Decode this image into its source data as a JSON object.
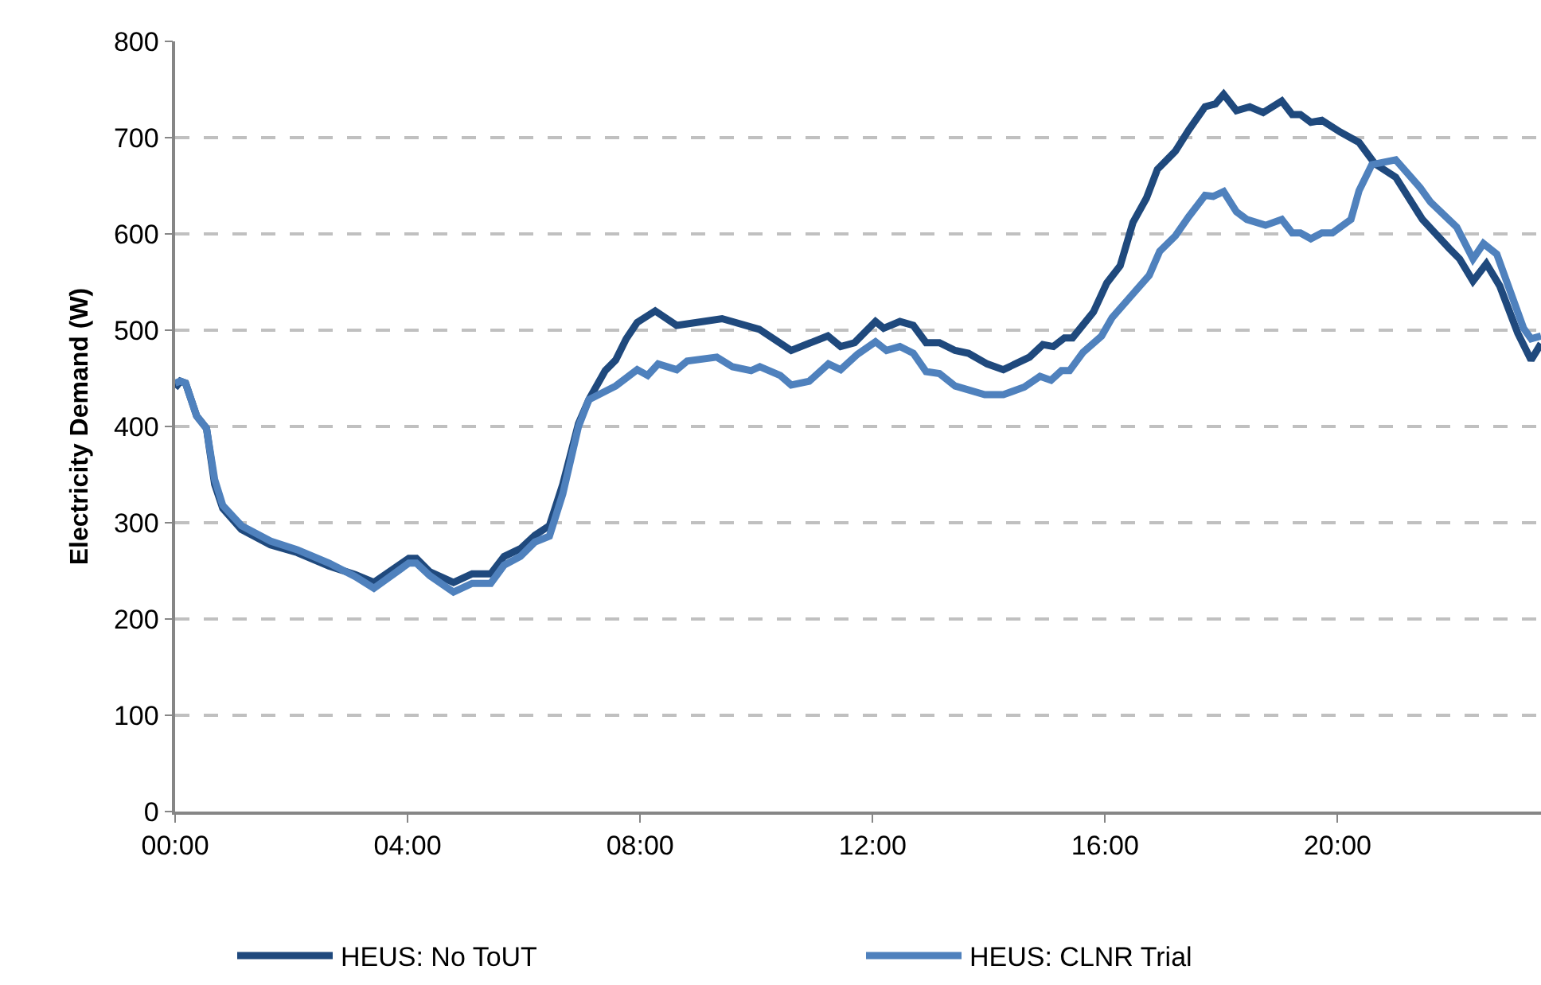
{
  "chart_data": {
    "type": "line",
    "ylabel": "Electricity Demand (W)",
    "xlim": [
      0,
      23.5
    ],
    "ylim": [
      0,
      800
    ],
    "xticks": [
      {
        "value": 0,
        "label": "00:00"
      },
      {
        "value": 4,
        "label": "04:00"
      },
      {
        "value": 8,
        "label": "08:00"
      },
      {
        "value": 12,
        "label": "12:00"
      },
      {
        "value": 16,
        "label": "16:00"
      },
      {
        "value": 20,
        "label": "20:00"
      }
    ],
    "yticks": [
      0,
      100,
      200,
      300,
      400,
      500,
      600,
      700,
      800
    ],
    "grid": "y",
    "legend": "bottom",
    "marker": "none",
    "line_style": "solid",
    "series": [
      {
        "name": "HEUS: No ToUT",
        "color": "#1f497d",
        "x": [
          0,
          0.09,
          0.18,
          0.37,
          0.54,
          0.68,
          0.82,
          1.14,
          1.64,
          2.1,
          2.65,
          3.1,
          3.42,
          4.02,
          4.15,
          4.38,
          4.79,
          5.11,
          5.43,
          5.66,
          5.94,
          6.19,
          6.44,
          6.67,
          6.94,
          7.12,
          7.4,
          7.58,
          7.76,
          7.95,
          8.26,
          8.63,
          9.41,
          10.05,
          10.6,
          11.23,
          11.45,
          11.69,
          12.05,
          12.19,
          12.47,
          12.7,
          12.92,
          13.15,
          13.42,
          13.65,
          13.97,
          14.25,
          14.7,
          14.93,
          15.11,
          15.3,
          15.44,
          15.8,
          16.03,
          16.26,
          16.48,
          16.71,
          16.9,
          17.21,
          17.44,
          17.72,
          17.9,
          18.04,
          18.26,
          18.49,
          18.72,
          19.04,
          19.22,
          19.36,
          19.54,
          19.73,
          20.04,
          20.37,
          20.64,
          21.0,
          21.46,
          21.92,
          22.1,
          22.33,
          22.56,
          22.79,
          23.1,
          23.33,
          23.5
        ],
        "values": [
          440,
          447,
          445,
          411,
          398,
          340,
          315,
          293,
          277,
          269,
          255,
          246,
          238,
          263,
          263,
          249,
          238,
          247,
          247,
          265,
          273,
          287,
          297,
          340,
          403,
          428,
          458,
          469,
          491,
          508,
          520,
          505,
          512,
          501,
          479,
          494,
          483,
          487,
          509,
          502,
          509,
          505,
          487,
          487,
          479,
          476,
          465,
          459,
          472,
          485,
          483,
          492,
          492,
          519,
          549,
          567,
          612,
          637,
          667,
          686,
          708,
          732,
          735,
          745,
          728,
          732,
          726,
          738,
          724,
          724,
          716,
          718,
          706,
          695,
          673,
          659,
          615,
          585,
          574,
          551,
          569,
          546,
          497,
          469,
          486
        ]
      },
      {
        "name": "HEUS: CLNR Trial",
        "color": "#4f81bd",
        "x": [
          0,
          0.09,
          0.18,
          0.37,
          0.54,
          0.68,
          0.82,
          1.14,
          1.64,
          2.1,
          2.65,
          3.1,
          3.42,
          4.02,
          4.15,
          4.38,
          4.79,
          5.11,
          5.43,
          5.66,
          5.94,
          6.19,
          6.44,
          6.67,
          6.94,
          7.12,
          7.58,
          7.95,
          8.13,
          8.31,
          8.63,
          8.81,
          9.32,
          9.59,
          9.91,
          10.06,
          10.41,
          10.6,
          10.91,
          11.24,
          11.45,
          11.74,
          12.05,
          12.24,
          12.47,
          12.7,
          12.92,
          13.15,
          13.42,
          13.93,
          14.25,
          14.61,
          14.88,
          15.07,
          15.25,
          15.39,
          15.62,
          15.94,
          16.12,
          16.44,
          16.76,
          16.94,
          17.21,
          17.44,
          17.72,
          17.86,
          18.04,
          18.26,
          18.44,
          18.76,
          19.04,
          19.22,
          19.36,
          19.54,
          19.73,
          19.91,
          20.23,
          20.37,
          20.59,
          21.0,
          21.42,
          21.6,
          22.05,
          22.33,
          22.51,
          22.74,
          23.2,
          23.33,
          23.5
        ],
        "values": [
          445,
          447,
          445,
          411,
          398,
          345,
          318,
          297,
          281,
          272,
          258,
          244,
          232,
          258,
          258,
          245,
          228,
          237,
          237,
          256,
          265,
          280,
          286,
          330,
          400,
          428,
          442,
          459,
          453,
          465,
          459,
          468,
          472,
          462,
          458,
          462,
          453,
          443,
          447,
          465,
          459,
          475,
          488,
          479,
          483,
          476,
          457,
          455,
          442,
          433,
          433,
          441,
          452,
          448,
          458,
          458,
          477,
          494,
          513,
          535,
          557,
          582,
          598,
          618,
          640,
          639,
          644,
          623,
          615,
          609,
          615,
          601,
          601,
          595,
          601,
          601,
          615,
          645,
          672,
          677,
          648,
          633,
          607,
          574,
          590,
          579,
          502,
          491,
          494
        ]
      }
    ]
  }
}
